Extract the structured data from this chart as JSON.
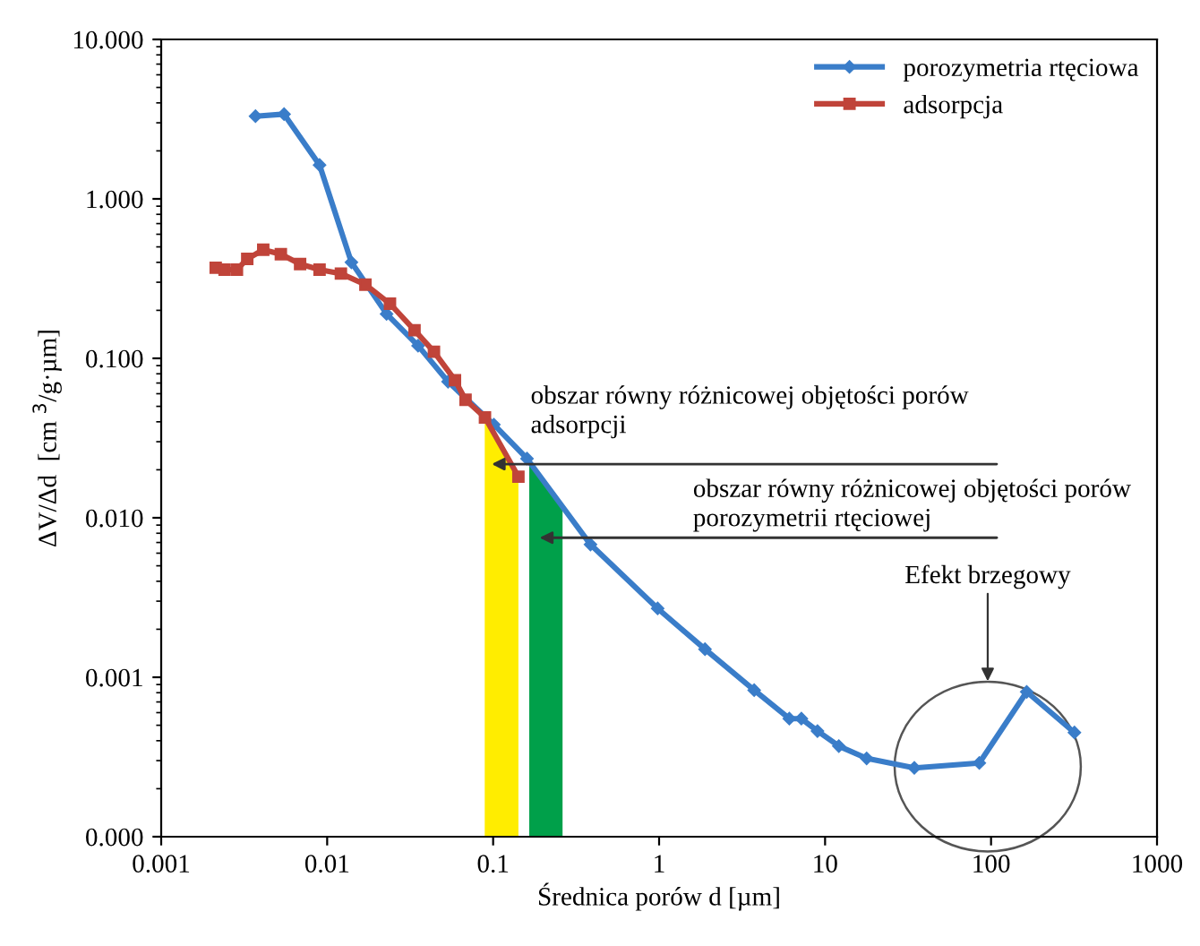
{
  "chart_data": {
    "type": "line",
    "xlabel": "Średnica porów d [µm]",
    "ylabel": "ΔV/Δd  [cm $^{3}$/g·µm]",
    "log": "xy",
    "xlim": [
      0.001,
      1000
    ],
    "xticks": [
      {
        "value": 0.001,
        "label": "0.001"
      },
      {
        "value": 0.01,
        "label": "0.01"
      },
      {
        "value": 0.1,
        "label": "0.1"
      },
      1,
      10,
      100,
      1000
    ],
    "ylim": [
      0.0001,
      10
    ],
    "yticks": [
      {
        "value": 0.0001,
        "label": "0.000"
      },
      {
        "value": 0.001,
        "label": "0.001"
      },
      {
        "value": 0.01,
        "label": "0.010"
      },
      {
        "value": 0.1,
        "label": "0.100"
      },
      {
        "value": 1,
        "label": "1.000"
      },
      {
        "value": 10,
        "label": "10.000"
      }
    ],
    "grid": false,
    "legend": "top right",
    "series": [
      {
        "type": "area",
        "color": "#ffed00",
        "x": [
          0.089,
          0.142
        ],
        "values": [
          0.0426,
          0.0181
        ]
      },
      {
        "type": "area",
        "color": "#00a04a",
        "x": [
          0.165,
          0.262
        ],
        "values": [
          0.0225,
          0.0117
        ]
      },
      {
        "name": "porozymetria rtęciowa",
        "color": "#3a7dc9",
        "marker": "diamond",
        "x": [
          0.0037,
          0.0055,
          0.009,
          0.014,
          0.0228,
          0.0353,
          0.0535,
          0.101,
          0.16,
          0.386,
          0.98,
          1.89,
          3.74,
          6.09,
          7.2,
          9.0,
          12.1,
          17.8,
          34.5,
          85,
          164,
          318
        ],
        "values": [
          3.3,
          3.4,
          1.63,
          0.4,
          0.19,
          0.12,
          0.0714,
          0.0384,
          0.0235,
          0.0068,
          0.0027,
          0.0015,
          0.00083,
          0.00055,
          0.00055,
          0.00046,
          0.00037,
          0.00031,
          0.00027,
          0.00029,
          0.00081,
          0.00045
        ]
      },
      {
        "name": "adsorpcja",
        "color": "#c0443a",
        "marker": "square",
        "x": [
          0.00213,
          0.00241,
          0.00286,
          0.0033,
          0.00412,
          0.00526,
          0.00687,
          0.009,
          0.0121,
          0.017,
          0.0239,
          0.0336,
          0.044,
          0.0589,
          0.0682,
          0.0893,
          0.142
        ],
        "values": [
          0.37,
          0.36,
          0.36,
          0.42,
          0.48,
          0.45,
          0.39,
          0.36,
          0.34,
          0.29,
          0.22,
          0.15,
          0.11,
          0.073,
          0.055,
          0.0426,
          0.0181
        ]
      }
    ],
    "annotations": [
      {
        "text": "obszar równy różnicowej objętości porów\nadsorpcji",
        "x": 0.098,
        "y": 0.0217
      },
      "obszar równy różnicowej objętości porów\nporozymetrii rtęciowej",
      "Efekt brzegowy"
    ]
  }
}
